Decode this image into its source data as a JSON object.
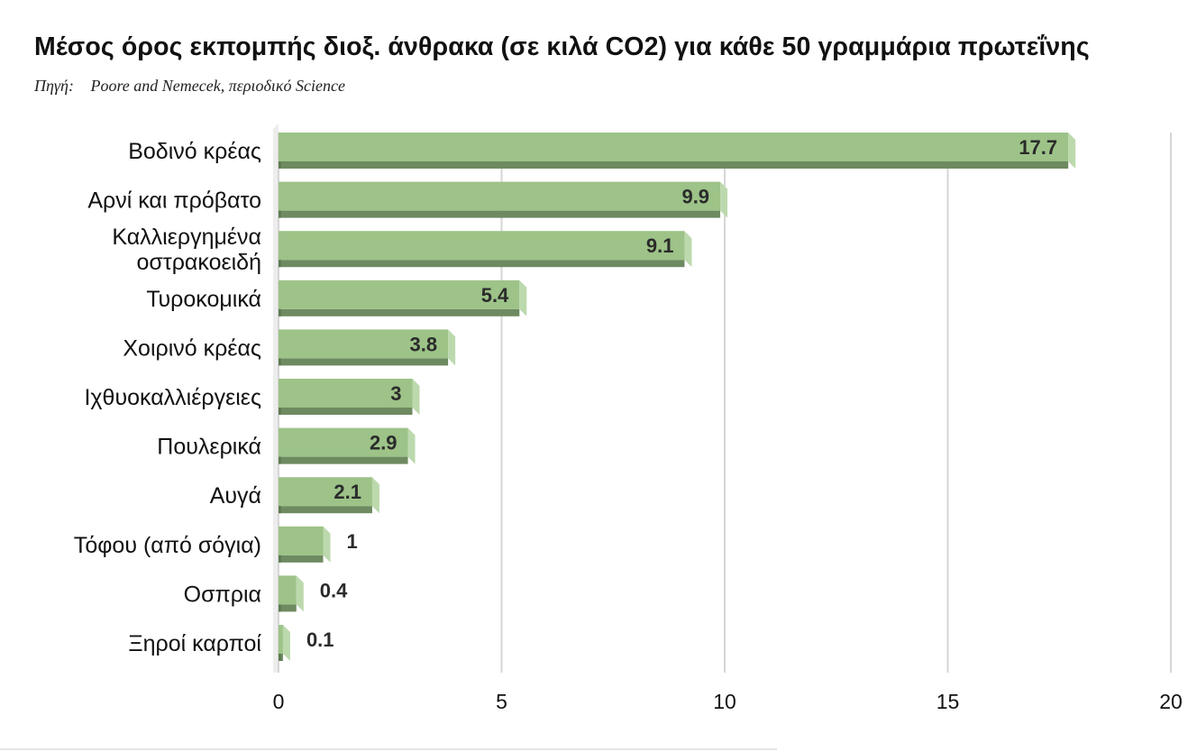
{
  "title": "Μέσος όρος εκπομπής διοξ. άνθρακα (σε κιλά CO2) για κάθε 50 γραμμάρια πρωτεΐνης",
  "source": {
    "label": "Πηγή:",
    "text": "Poore and Nemecek, περιοδικό Science"
  },
  "colors": {
    "bar_face": "#9dc388",
    "bar_shadow": "#6e8a60",
    "bar_side": "#bcd9ad",
    "grid": "#d6d6d6",
    "axis_wall": "#ededed"
  },
  "chart_data": {
    "type": "bar",
    "orientation": "horizontal",
    "categories": [
      [
        "Βοδινό κρέας"
      ],
      [
        "Αρνί και πρόβατο"
      ],
      [
        "Καλλιεργημένα",
        "οστρακοειδή"
      ],
      [
        "Τυροκομικά"
      ],
      [
        "Χοιρινό κρέας"
      ],
      [
        "Ιχθυοκαλλιέργειες"
      ],
      [
        "Πουλερικά"
      ],
      [
        "Αυγά"
      ],
      [
        "Τόφου (από σόγια)"
      ],
      [
        "Οσπρια"
      ],
      [
        "Ξηροί καρποί"
      ]
    ],
    "values": [
      17.7,
      9.9,
      9.1,
      5.4,
      3.8,
      3,
      2.9,
      2.1,
      1,
      0.4,
      0.1
    ],
    "value_labels": [
      "17.7",
      "9.9",
      "9.1",
      "5.4",
      "3.8",
      "3",
      "2.9",
      "2.1",
      "1",
      "0.4",
      "0.1"
    ],
    "xlim": [
      0,
      20
    ],
    "xticks": [
      "0",
      "5",
      "10",
      "15",
      "20"
    ],
    "grid": true,
    "style": "3d"
  }
}
